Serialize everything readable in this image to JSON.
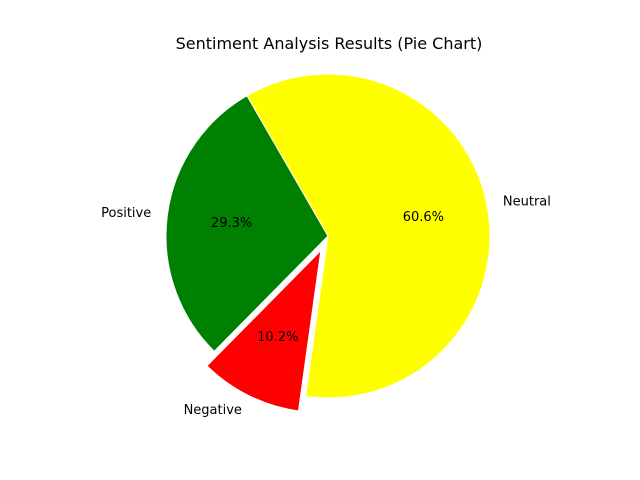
{
  "chart_data": {
    "type": "pie",
    "title": "Sentiment Analysis Results (Pie Chart)",
    "categories": [
      "Positive",
      "Negative",
      "Neutral"
    ],
    "values": [
      29.3,
      10.2,
      60.6
    ],
    "percent_labels": [
      "29.3%",
      "10.2%",
      "60.6%"
    ],
    "colors": [
      "#008000",
      "#ff0000",
      "#ffff00"
    ],
    "explode": [
      0,
      0.1,
      0
    ],
    "start_angle_deg": 120,
    "direction": "counterclockwise",
    "edgecolor": "#ffffff"
  }
}
